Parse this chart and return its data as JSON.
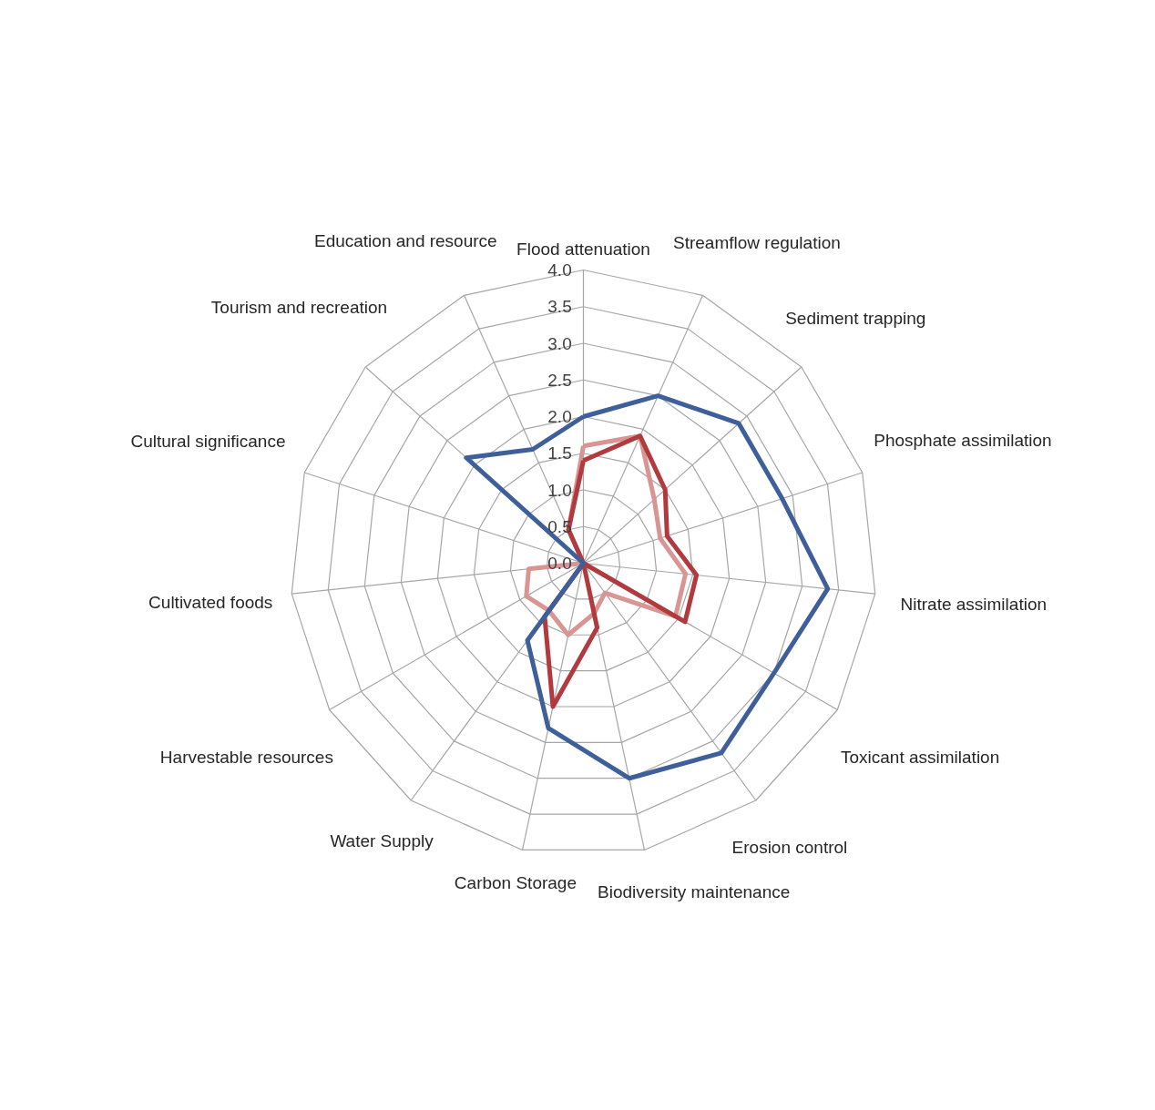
{
  "chart_data": {
    "type": "radar",
    "categories": [
      "Flood attenuation",
      "Streamflow regulation",
      "Sediment trapping",
      "Phosphate assimilation",
      "Nitrate assimilation",
      "Toxicant assimilation",
      "Erosion control",
      "Biodiversity maintenance",
      "Carbon Storage",
      "Water Supply",
      "Harvestable resources",
      "Cultivated foods",
      "Cultural significance",
      "Tourism and recreation",
      "Education and resource"
    ],
    "ylim": [
      0,
      4
    ],
    "yticks": [
      {
        "value": 0,
        "label": "0.0"
      },
      {
        "value": 0.5,
        "label": "0.5"
      },
      {
        "value": 1,
        "label": "1.0"
      },
      {
        "value": 1.5,
        "label": "1.5"
      },
      {
        "value": 2,
        "label": "2.0"
      },
      {
        "value": 2.5,
        "label": "2.5"
      },
      {
        "value": 3,
        "label": "3.0"
      },
      {
        "value": 3.5,
        "label": "3.5"
      },
      {
        "value": 4,
        "label": "4.0"
      }
    ],
    "grid": true,
    "series": [
      {
        "color": "#d99594",
        "values": [
          1.6,
          1.9,
          1.3,
          1.1,
          1.4,
          1.45,
          0.5,
          0.7,
          1.0,
          0.8,
          0.9,
          0.75,
          0,
          0,
          0.5
        ]
      },
      {
        "color": "#b03a3e",
        "values": [
          1.4,
          1.9,
          1.5,
          1.2,
          1.55,
          1.6,
          0,
          0.9,
          2.0,
          0.9,
          0,
          0,
          0,
          0,
          0.5
        ]
      },
      {
        "color": "#3e5f9a",
        "values": [
          2.0,
          2.5,
          2.85,
          2.85,
          3.35,
          3.0,
          3.2,
          3.0,
          2.3,
          1.3,
          0,
          0,
          0,
          2.15,
          1.7
        ]
      }
    ]
  }
}
